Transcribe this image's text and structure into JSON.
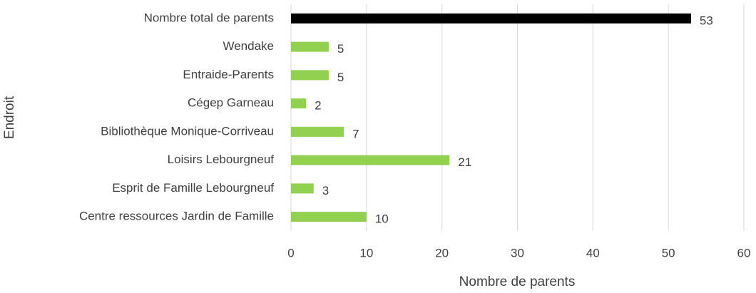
{
  "chart_data": {
    "type": "bar",
    "orientation": "horizontal",
    "x_label": "Nombre de parents",
    "y_label": "Endroit",
    "categories": [
      "Nombre total de parents",
      "Wendake",
      "Entraide-Parents",
      "Cégep Garneau",
      "Bibliothèque Monique-Corriveau",
      "Loisirs Lebourgneuf",
      "Esprit de Famille Lebourgneuf",
      "Centre ressources Jardin de Famille"
    ],
    "values": [
      53,
      5,
      5,
      2,
      7,
      21,
      3,
      10
    ],
    "colors": [
      "#000000",
      "#92d050",
      "#92d050",
      "#92d050",
      "#92d050",
      "#92d050",
      "#92d050",
      "#92d050"
    ],
    "xlim": [
      0,
      60
    ],
    "xticks": [
      0,
      10,
      20,
      30,
      40,
      50,
      60
    ],
    "grid": true
  }
}
